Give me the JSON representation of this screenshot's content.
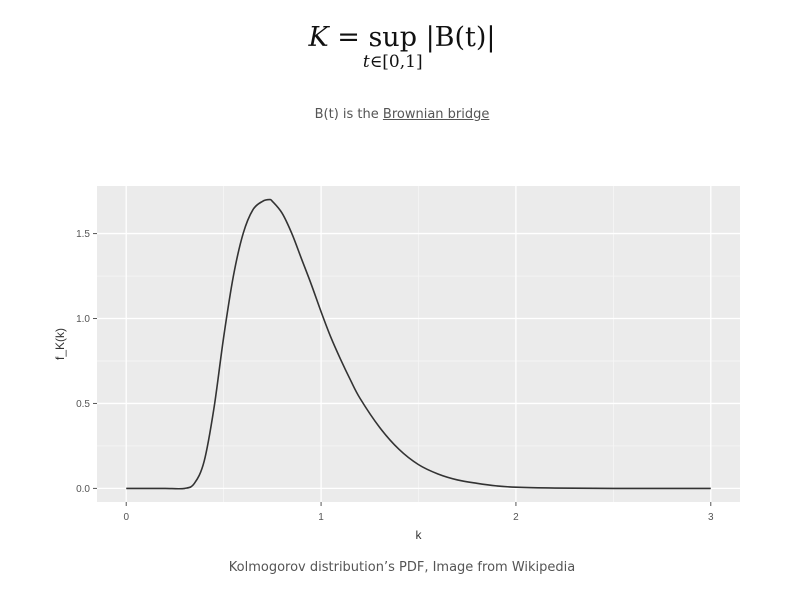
{
  "formula": {
    "lhs": "K",
    "equals": "=",
    "operator": "sup",
    "subscript_var": "t",
    "subscript_rest": "∈[0,1]",
    "rhs": "|B(t)|"
  },
  "note": {
    "prefix": "B(t) is the ",
    "link_text": "Brownian bridge"
  },
  "caption": "Kolmogorov distribution’s PDF, Image from Wikipedia",
  "chart_data": {
    "type": "line",
    "title": "",
    "xlabel": "k",
    "ylabel": "f_K(k)",
    "xlim": [
      -0.15,
      3.15
    ],
    "ylim": [
      -0.08,
      1.78
    ],
    "xticks": [
      0,
      1,
      2,
      3
    ],
    "xtick_labels": [
      "0",
      "1",
      "2",
      "3"
    ],
    "yticks": [
      0.0,
      0.5,
      1.0,
      1.5
    ],
    "ytick_labels": [
      "0.0",
      "0.5",
      "1.0",
      "1.5"
    ],
    "grid": true,
    "panel_color": "#ebebeb",
    "line_color": "#333333",
    "x": [
      0,
      0.1,
      0.2,
      0.3,
      0.35,
      0.4,
      0.45,
      0.5,
      0.55,
      0.6,
      0.65,
      0.7,
      0.735,
      0.75,
      0.8,
      0.85,
      0.9,
      0.95,
      1.0,
      1.05,
      1.1,
      1.15,
      1.2,
      1.3,
      1.4,
      1.5,
      1.6,
      1.7,
      1.8,
      1.9,
      2.0,
      2.2,
      2.5,
      3.0
    ],
    "y": [
      0,
      0,
      0,
      0.0,
      0.03,
      0.16,
      0.47,
      0.89,
      1.25,
      1.5,
      1.64,
      1.69,
      1.7,
      1.69,
      1.62,
      1.5,
      1.35,
      1.2,
      1.04,
      0.89,
      0.76,
      0.64,
      0.53,
      0.36,
      0.23,
      0.14,
      0.085,
      0.05,
      0.03,
      0.015,
      0.007,
      0.002,
      0.0,
      0.0
    ]
  }
}
